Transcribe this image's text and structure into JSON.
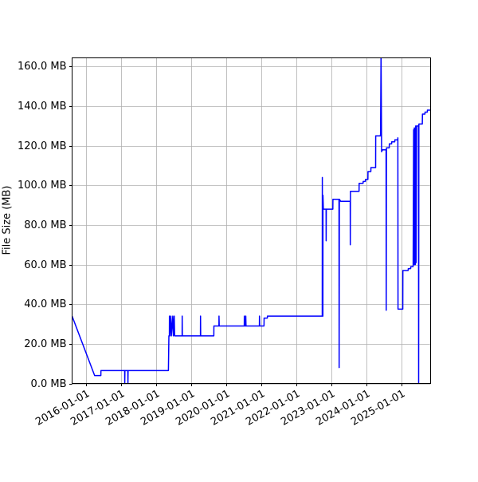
{
  "chart_data": {
    "type": "line",
    "title": "",
    "xlabel": "",
    "ylabel": "File Size (MB)",
    "xlim": [
      "2015-08-10",
      "2025-11-03"
    ],
    "ylim": [
      0,
      164.4
    ],
    "grid": true,
    "line_color": "#0000ff",
    "x_ticks": [
      "2016-01-01",
      "2017-01-01",
      "2018-01-01",
      "2019-01-01",
      "2020-01-01",
      "2021-01-01",
      "2022-01-01",
      "2023-01-01",
      "2024-01-01",
      "2025-01-01"
    ],
    "y_ticks": [
      0,
      20,
      40,
      60,
      80,
      100,
      120,
      140,
      160
    ],
    "y_tick_labels": [
      "0.0 MB",
      "20.0 MB",
      "40.0 MB",
      "60.0 MB",
      "80.0 MB",
      "100.0 MB",
      "120.0 MB",
      "140.0 MB",
      "160.0 MB"
    ],
    "series": [
      {
        "points": [
          [
            "2015-08-10",
            34
          ],
          [
            "2016-04-01",
            4
          ],
          [
            "2016-06-05",
            4
          ],
          [
            "2016-06-06",
            6.5
          ],
          [
            "2017-02-08",
            6.5
          ],
          [
            "2017-02-09",
            0
          ],
          [
            "2017-02-11",
            6.5
          ],
          [
            "2017-03-13",
            6.5
          ],
          [
            "2017-03-14",
            0
          ],
          [
            "2017-03-16",
            6.5
          ],
          [
            "2018-05-10",
            6.5
          ],
          [
            "2018-05-15",
            24
          ],
          [
            "2018-05-20",
            24
          ],
          [
            "2018-05-21",
            34
          ],
          [
            "2018-05-25",
            24
          ],
          [
            "2018-06-05",
            34
          ],
          [
            "2018-06-10",
            24
          ],
          [
            "2018-06-25",
            34
          ],
          [
            "2018-07-01",
            24
          ],
          [
            "2018-07-10",
            34
          ],
          [
            "2018-07-14",
            24
          ],
          [
            "2018-09-30",
            24
          ],
          [
            "2018-10-01",
            34
          ],
          [
            "2018-10-03",
            24
          ],
          [
            "2019-04-09",
            24
          ],
          [
            "2019-04-10",
            34
          ],
          [
            "2019-04-12",
            24
          ],
          [
            "2019-08-27",
            24
          ],
          [
            "2019-08-28",
            29
          ],
          [
            "2019-10-19",
            29
          ],
          [
            "2019-10-20",
            34
          ],
          [
            "2019-10-22",
            29
          ],
          [
            "2020-07-09",
            29
          ],
          [
            "2020-07-10",
            34
          ],
          [
            "2020-07-12",
            29
          ],
          [
            "2020-07-24",
            29
          ],
          [
            "2020-07-25",
            34
          ],
          [
            "2020-07-27",
            29
          ],
          [
            "2020-12-14",
            29
          ],
          [
            "2020-12-15",
            34
          ],
          [
            "2020-12-17",
            29
          ],
          [
            "2021-01-31",
            29
          ],
          [
            "2021-02-01",
            33
          ],
          [
            "2021-03-07",
            33
          ],
          [
            "2021-03-08",
            34
          ],
          [
            "2022-09-30",
            34
          ],
          [
            "2022-10-01",
            104
          ],
          [
            "2022-10-04",
            34
          ],
          [
            "2022-10-07",
            34
          ],
          [
            "2022-10-08",
            95
          ],
          [
            "2022-10-12",
            88
          ],
          [
            "2022-11-09",
            88
          ],
          [
            "2022-11-10",
            72
          ],
          [
            "2022-11-12",
            88
          ],
          [
            "2023-01-19",
            88
          ],
          [
            "2023-01-20",
            93
          ],
          [
            "2023-03-24",
            93
          ],
          [
            "2023-03-25",
            8
          ],
          [
            "2023-03-28",
            93
          ],
          [
            "2023-04-10",
            92
          ],
          [
            "2023-07-19",
            92
          ],
          [
            "2023-07-20",
            70
          ],
          [
            "2023-07-21",
            97
          ],
          [
            "2023-10-19",
            97
          ],
          [
            "2023-10-20",
            101
          ],
          [
            "2023-11-30",
            101
          ],
          [
            "2023-12-01",
            102
          ],
          [
            "2023-12-24",
            102
          ],
          [
            "2023-12-25",
            103
          ],
          [
            "2024-01-19",
            103
          ],
          [
            "2024-01-20",
            107
          ],
          [
            "2024-02-19",
            107
          ],
          [
            "2024-02-20",
            109
          ],
          [
            "2024-04-09",
            109
          ],
          [
            "2024-04-10",
            125
          ],
          [
            "2024-05-29",
            125
          ],
          [
            "2024-05-30",
            126
          ],
          [
            "2024-06-04",
            168
          ],
          [
            "2024-06-10",
            117
          ],
          [
            "2024-06-20",
            118
          ],
          [
            "2024-07-27",
            118
          ],
          [
            "2024-07-28",
            37
          ],
          [
            "2024-07-31",
            119
          ],
          [
            "2024-08-29",
            119
          ],
          [
            "2024-08-30",
            121
          ],
          [
            "2024-09-23",
            121
          ],
          [
            "2024-09-24",
            122
          ],
          [
            "2024-10-25",
            122
          ],
          [
            "2024-10-26",
            123
          ],
          [
            "2024-11-26",
            123
          ],
          [
            "2024-11-27",
            124
          ],
          [
            "2024-11-28",
            37.5
          ],
          [
            "2025-01-17",
            37.5
          ],
          [
            "2025-01-18",
            57
          ],
          [
            "2025-03-14",
            57
          ],
          [
            "2025-03-15",
            58
          ],
          [
            "2025-04-09",
            58
          ],
          [
            "2025-04-10",
            59
          ],
          [
            "2025-05-04",
            59
          ],
          [
            "2025-05-05",
            60
          ],
          [
            "2025-05-10",
            128
          ],
          [
            "2025-05-13",
            60
          ],
          [
            "2025-05-17",
            129
          ],
          [
            "2025-05-20",
            60
          ],
          [
            "2025-05-24",
            129
          ],
          [
            "2025-05-28",
            60
          ],
          [
            "2025-06-01",
            130
          ],
          [
            "2025-06-05",
            61
          ],
          [
            "2025-06-10",
            130
          ],
          [
            "2025-06-30",
            130
          ],
          [
            "2025-07-01",
            0
          ],
          [
            "2025-07-04",
            131
          ],
          [
            "2025-08-09",
            131
          ],
          [
            "2025-08-10",
            136
          ],
          [
            "2025-09-05",
            136
          ],
          [
            "2025-09-06",
            137
          ],
          [
            "2025-09-30",
            137
          ],
          [
            "2025-10-01",
            138
          ],
          [
            "2025-11-03",
            138
          ]
        ]
      }
    ]
  }
}
